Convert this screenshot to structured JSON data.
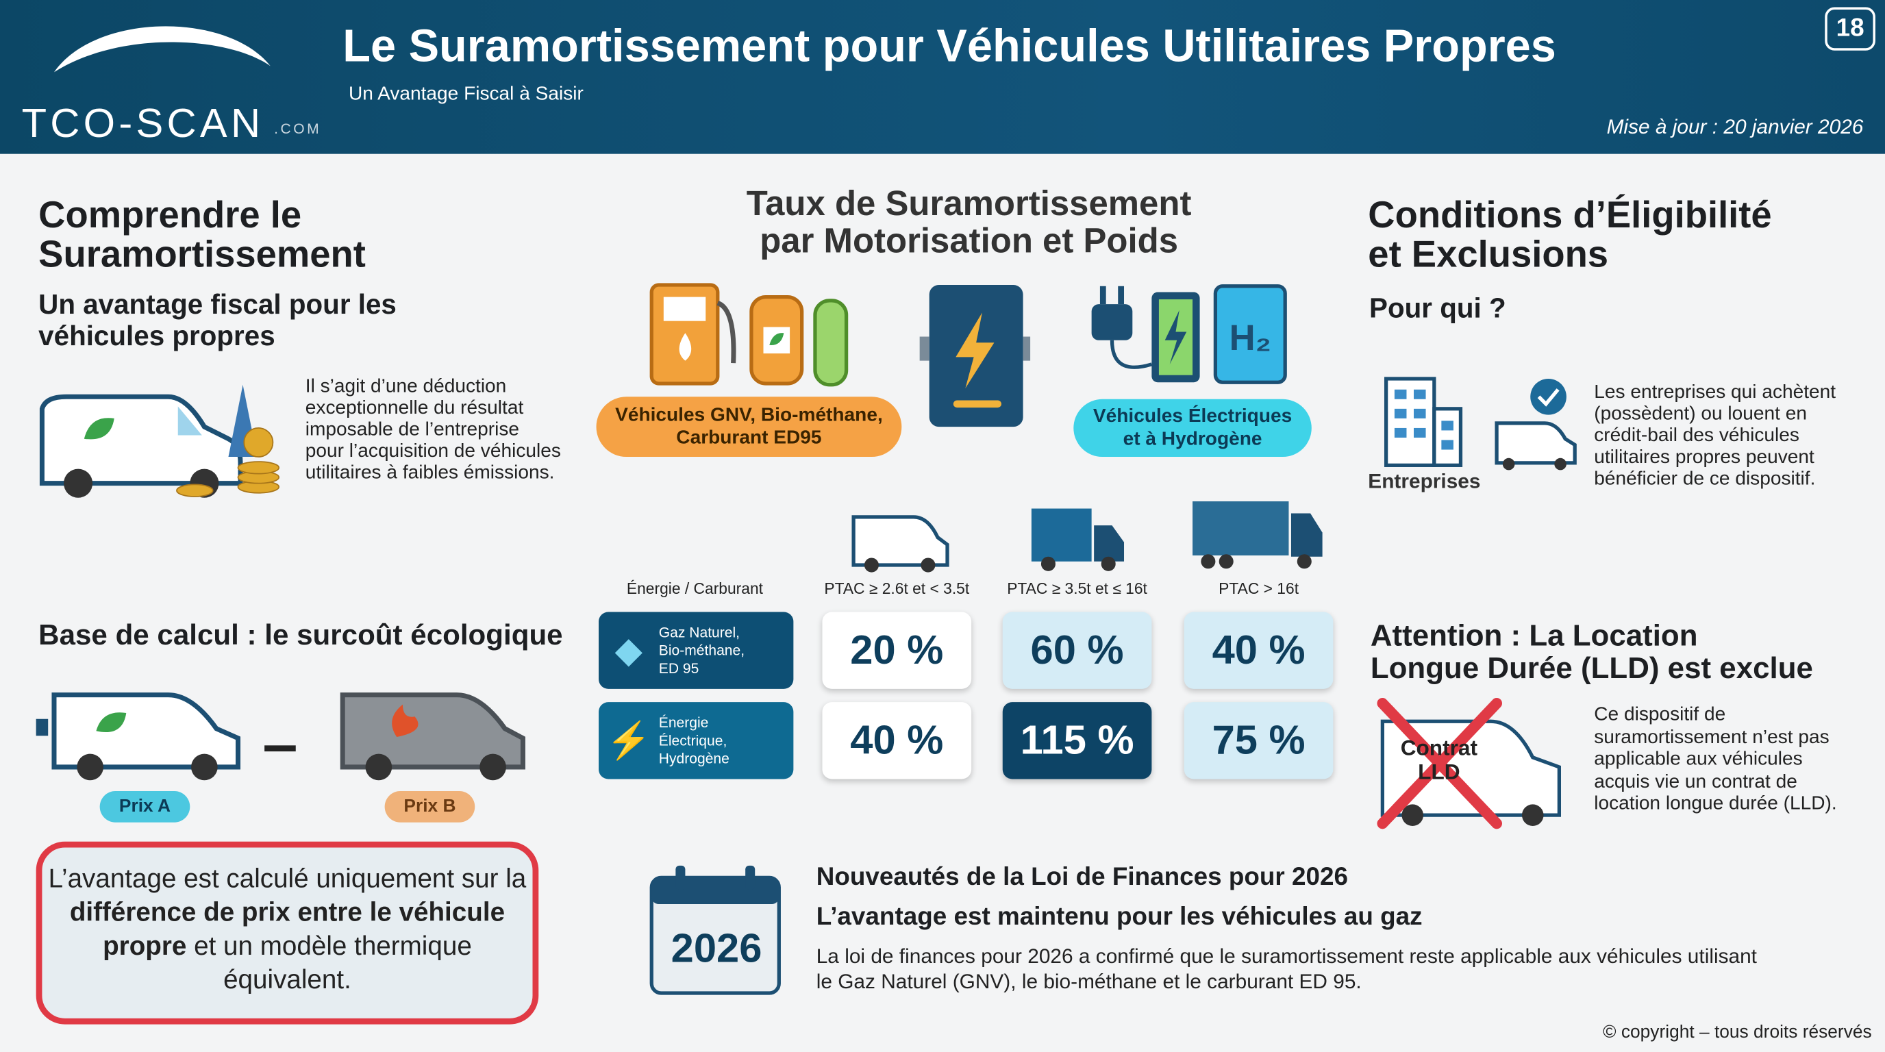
{
  "header": {
    "logo_main": "TCO-SCAN",
    "logo_suffix": ".COM",
    "title": "Le Suramortissement pour Véhicules Utilitaires Propres",
    "subtitle": "Un Avantage Fiscal à Saisir",
    "date": "Mise à jour : 20 janvier 2026",
    "page": "18"
  },
  "left": {
    "title_lines": [
      "Comprendre le",
      "Suramortissement"
    ],
    "subtitle_lines": [
      "Un avantage fiscal pour les",
      "véhicules propres"
    ],
    "description_lines": [
      "Il s’agit d’une déduction",
      "exceptionnelle du résultat",
      "imposable de l’entreprise",
      "pour l’acquisition de véhicules",
      "utilitaires à faibles émissions."
    ],
    "base_title": "Base de calcul : le surcoût écologique",
    "price_a": "Prix A",
    "price_b": "Prix B",
    "note_lines": [
      [
        "L’avantage est calculé uniquement sur la"
      ],
      [
        "différence de prix entre le véhicule"
      ],
      [
        "propre",
        " et un modèle thermique"
      ],
      [
        "équivalent."
      ]
    ]
  },
  "center": {
    "title_lines": [
      "Taux de Suramortissement",
      "par Motorisation et Poids"
    ],
    "badge_gas_lines": [
      "Véhicules GNV, Bio-méthane,",
      "Carburant ED95"
    ],
    "badge_elec_lines": [
      "Véhicules Électriques",
      "et à Hydrogène"
    ],
    "table": {
      "header": [
        "Énergie / Carburant",
        "PTAC ≥ 2.6t et < 3.5t",
        "PTAC ≥ 3.5t et ≤ 16t",
        "PTAC > 16t"
      ],
      "rows": [
        {
          "label_lines": [
            "Gaz Naturel,",
            "Bio-méthane,",
            "ED 95"
          ],
          "cells": [
            "20 %",
            "60 %",
            "40 %"
          ]
        },
        {
          "label_lines": [
            "Énergie",
            "Électrique,",
            "Hydrogène"
          ],
          "cells": [
            "40 %",
            "115 %",
            "75 %"
          ]
        }
      ]
    }
  },
  "right": {
    "title_lines": [
      "Conditions d’Éligibilité",
      "et Exclusions"
    ],
    "who": "Pour qui ?",
    "companies": "Entreprises",
    "who_text_lines": [
      "Les entreprises qui achètent",
      "(possèdent) ou louent en",
      "crédit-bail des véhicules",
      "utilitaires propres peuvent",
      "bénéficier de ce dispositif."
    ],
    "attention_lines": [
      "Attention : La Location",
      "Longue Durée (LLD) est exclue"
    ],
    "contract_lines": [
      "Contrat",
      "LLD"
    ],
    "attention_text_lines": [
      "Ce dispositif de",
      "suramortissement n’est pas",
      "applicable aux véhicules",
      "acquis vie un contrat de",
      "location longue durée (LLD)."
    ]
  },
  "news": {
    "year": "2026",
    "title": "Nouveautés de la Loi de Finances pour 2026",
    "subtitle": "L’avantage est maintenu pour les véhicules au gaz",
    "body_lines": [
      "La loi de finances pour 2026 a confirmé que le suramortissement reste applicable aux véhicules utilisant",
      "le Gaz Naturel (GNV), le bio-méthane et le carburant ED 95."
    ]
  },
  "copyright": "© copyright – tous droits réservés"
}
